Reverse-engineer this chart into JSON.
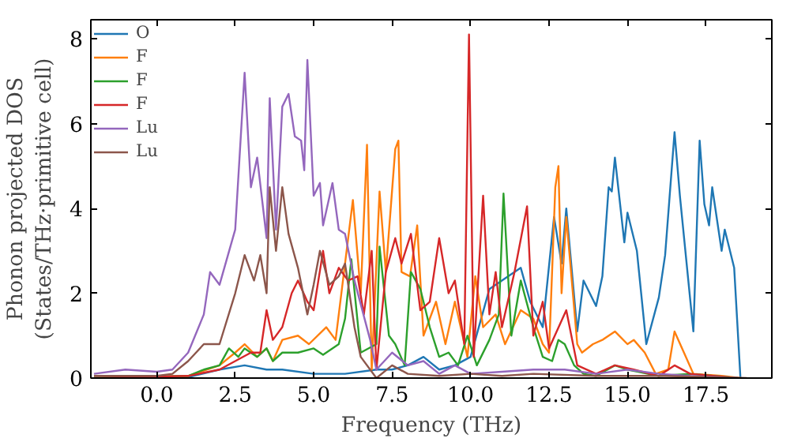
{
  "chart_data": {
    "type": "line",
    "xlabel": "Frequency (THz)",
    "ylabel": "Phonon projected DOS\n(States/THz·primitive cell)",
    "xlim": [
      -2.1,
      19.6
    ],
    "ylim": [
      0,
      8.45
    ],
    "xticks": [
      {
        "value": 0,
        "label": "0.0"
      },
      {
        "value": 2.5,
        "label": "2.5"
      },
      {
        "value": 5,
        "label": "5.0"
      },
      {
        "value": 7.5,
        "label": "7.5"
      },
      {
        "value": 10,
        "label": "10.0"
      },
      {
        "value": 12.5,
        "label": "12.5"
      },
      {
        "value": 15,
        "label": "15.0"
      },
      {
        "value": 17.5,
        "label": "17.5"
      }
    ],
    "yticks": [
      0,
      2,
      4,
      6,
      8
    ],
    "grid": false,
    "legend": "top left",
    "series": [
      {
        "name": "O",
        "color": "#1f77b4",
        "x": [
          -2,
          1,
          2,
          2.8,
          3.5,
          4,
          5,
          6,
          7,
          7.5,
          8,
          8.5,
          9,
          9.5,
          10,
          10.6,
          11.2,
          11.6,
          11.9,
          12.3,
          12.66,
          12.9,
          13.05,
          13.4,
          13.6,
          14.0,
          14.2,
          14.4,
          14.5,
          14.6,
          14.9,
          15.0,
          15.3,
          15.6,
          16.0,
          16.2,
          16.5,
          16.67,
          17.1,
          17.3,
          17.45,
          17.6,
          17.7,
          18.0,
          18.1,
          18.4,
          18.6
        ],
        "values": [
          0,
          0.02,
          0.2,
          0.3,
          0.2,
          0.2,
          0.1,
          0.1,
          0.2,
          0.2,
          0.3,
          0.5,
          0.2,
          0.3,
          0.5,
          2.1,
          2.4,
          2.6,
          1.8,
          1.2,
          3.8,
          2.7,
          4.0,
          1.1,
          2.3,
          1.7,
          2.4,
          4.5,
          4.4,
          5.2,
          3.2,
          3.9,
          3.0,
          0.8,
          1.9,
          2.9,
          5.8,
          4.3,
          1.1,
          5.6,
          4.1,
          3.6,
          4.5,
          3.0,
          3.5,
          2.6,
          0
        ]
      },
      {
        "name": "F",
        "color": "#ff7f0e",
        "x": [
          -2,
          1,
          2,
          2.5,
          2.8,
          3.2,
          3.5,
          3.7,
          4,
          4.5,
          4.85,
          5.4,
          5.7,
          6.25,
          6.5,
          6.7,
          6.85,
          7.1,
          7.3,
          7.6,
          7.7,
          7.8,
          8.07,
          8.3,
          8.5,
          8.9,
          9.2,
          9.5,
          9.9,
          10.15,
          10.4,
          10.8,
          11.1,
          11.6,
          12.0,
          12.3,
          12.5,
          12.7,
          12.8,
          12.9,
          13.05,
          13.4,
          13.55,
          13.9,
          14.2,
          14.6,
          15.0,
          15.2,
          15.55,
          15.9,
          16.3,
          16.5,
          16.8,
          17.1,
          18.0,
          18.6
        ],
        "values": [
          0,
          0.05,
          0.3,
          0.6,
          0.8,
          0.5,
          0.7,
          0.4,
          0.9,
          1.0,
          0.8,
          1.2,
          0.9,
          4.2,
          2.0,
          5.5,
          0.2,
          4.4,
          2.5,
          5.4,
          5.6,
          2.5,
          2.4,
          3.6,
          1.0,
          1.8,
          0.8,
          1.8,
          0.5,
          2.4,
          1.2,
          1.5,
          0.8,
          1.6,
          1.4,
          0.8,
          0.6,
          4.5,
          5.0,
          2.0,
          3.8,
          0.8,
          0.6,
          0.8,
          0.9,
          1.1,
          0.8,
          0.9,
          0.6,
          0.1,
          0.2,
          1.1,
          0.6,
          0.1,
          0.05,
          0
        ]
      },
      {
        "name": "F",
        "color": "#2ca02c",
        "x": [
          -2,
          1,
          1.5,
          2,
          2.3,
          2.6,
          2.8,
          3.2,
          3.5,
          3.7,
          4,
          4.5,
          5,
          5.3,
          5.8,
          6.0,
          6.2,
          6.5,
          7.0,
          7.1,
          7.4,
          7.6,
          7.9,
          8.1,
          8.4,
          8.7,
          9.0,
          9.3,
          9.6,
          9.9,
          10.2,
          10.6,
          10.9,
          11.05,
          11.3,
          11.6,
          12.0,
          12.3,
          12.6,
          12.8,
          13.0,
          13.3,
          13.6,
          14.0,
          14.6,
          15.0,
          16.0,
          17.0,
          18.5
        ],
        "values": [
          0,
          0.05,
          0.2,
          0.3,
          0.7,
          0.5,
          0.7,
          0.5,
          0.7,
          0.4,
          0.6,
          0.6,
          0.7,
          0.55,
          0.8,
          1.4,
          2.8,
          0.6,
          0.8,
          3.1,
          1.0,
          0.8,
          0.3,
          2.5,
          2.1,
          1.2,
          0.5,
          0.6,
          0.3,
          1.0,
          0.3,
          0.9,
          1.5,
          4.35,
          1.0,
          2.3,
          1.2,
          0.5,
          0.4,
          0.9,
          0.8,
          0.3,
          0.1,
          0.05,
          0.3,
          0.2,
          0.05,
          0.1,
          0
        ]
      },
      {
        "name": "F",
        "color": "#d62728",
        "x": [
          -2,
          1,
          2,
          2.5,
          3,
          3.3,
          3.5,
          3.7,
          4,
          4.3,
          4.5,
          4.8,
          5,
          5.3,
          5.5,
          5.8,
          6.1,
          6.4,
          6.6,
          6.85,
          7.0,
          7.3,
          7.6,
          7.8,
          8.1,
          8.4,
          8.7,
          9.0,
          9.3,
          9.5,
          9.8,
          9.95,
          10.1,
          10.4,
          10.6,
          10.8,
          11.0,
          11.4,
          11.8,
          12.0,
          12.3,
          12.5,
          13.05,
          13.4,
          14.0,
          14.6,
          15.2,
          16.0,
          16.5,
          17.0,
          18.5
        ],
        "values": [
          0,
          0.05,
          0.2,
          0.4,
          0.6,
          0.6,
          1.6,
          0.9,
          1.2,
          2.0,
          2.3,
          1.8,
          1.6,
          3.0,
          2.0,
          2.6,
          2.3,
          2.4,
          1.5,
          3.0,
          0.2,
          2.5,
          3.3,
          2.7,
          3.4,
          1.6,
          1.8,
          3.3,
          2.0,
          2.3,
          0.8,
          8.1,
          0.5,
          4.3,
          1.5,
          2.5,
          1.2,
          2.5,
          4.05,
          1.0,
          1.8,
          0.7,
          1.6,
          0.3,
          0.1,
          0.3,
          0.2,
          0.05,
          0.3,
          0.1,
          0
        ]
      },
      {
        "name": "Lu",
        "color": "#9467bd",
        "x": [
          -2,
          -1,
          0,
          0.5,
          1,
          1.5,
          1.7,
          2,
          2.5,
          2.8,
          3,
          3.2,
          3.5,
          3.6,
          3.8,
          4,
          4.2,
          4.4,
          4.6,
          4.7,
          4.8,
          5,
          5.2,
          5.3,
          5.6,
          5.8,
          6,
          6.3,
          6.8,
          7,
          7.5,
          8,
          8.5,
          9,
          9.5,
          10,
          11,
          12,
          13,
          14,
          15,
          16,
          17,
          18.5
        ],
        "values": [
          0.1,
          0.2,
          0.15,
          0.2,
          0.6,
          1.5,
          2.5,
          2.2,
          3.5,
          7.2,
          4.5,
          5.2,
          3.3,
          6.6,
          3.5,
          6.4,
          6.7,
          5.7,
          5.6,
          4.9,
          7.5,
          4.3,
          4.6,
          3.6,
          4.6,
          3.5,
          3.4,
          2.3,
          0.9,
          0.2,
          0.6,
          0.3,
          0.4,
          0.1,
          0.3,
          0.1,
          0.15,
          0.2,
          0.2,
          0.1,
          0.2,
          0.1,
          0.05,
          0
        ]
      },
      {
        "name": "Lu",
        "color": "#8c564b",
        "x": [
          -2,
          0,
          0.5,
          1,
          1.5,
          2,
          2.5,
          2.8,
          3.1,
          3.3,
          3.5,
          3.6,
          3.8,
          4,
          4.2,
          4.5,
          4.8,
          5,
          5.2,
          5.5,
          5.8,
          6,
          6.3,
          6.5,
          7,
          7.5,
          8,
          9,
          10,
          11,
          12,
          14,
          16,
          18,
          18.8
        ],
        "values": [
          0.05,
          0.05,
          0.1,
          0.4,
          0.8,
          0.8,
          2.0,
          2.9,
          2.3,
          2.9,
          2.0,
          4.5,
          3.0,
          4.5,
          3.4,
          2.6,
          1.5,
          2.2,
          3.0,
          2.2,
          2.4,
          2.7,
          1.2,
          0.5,
          0,
          0.3,
          0.1,
          0.05,
          0.1,
          0.05,
          0.1,
          0.05,
          0.05,
          0.02,
          0
        ]
      }
    ]
  }
}
